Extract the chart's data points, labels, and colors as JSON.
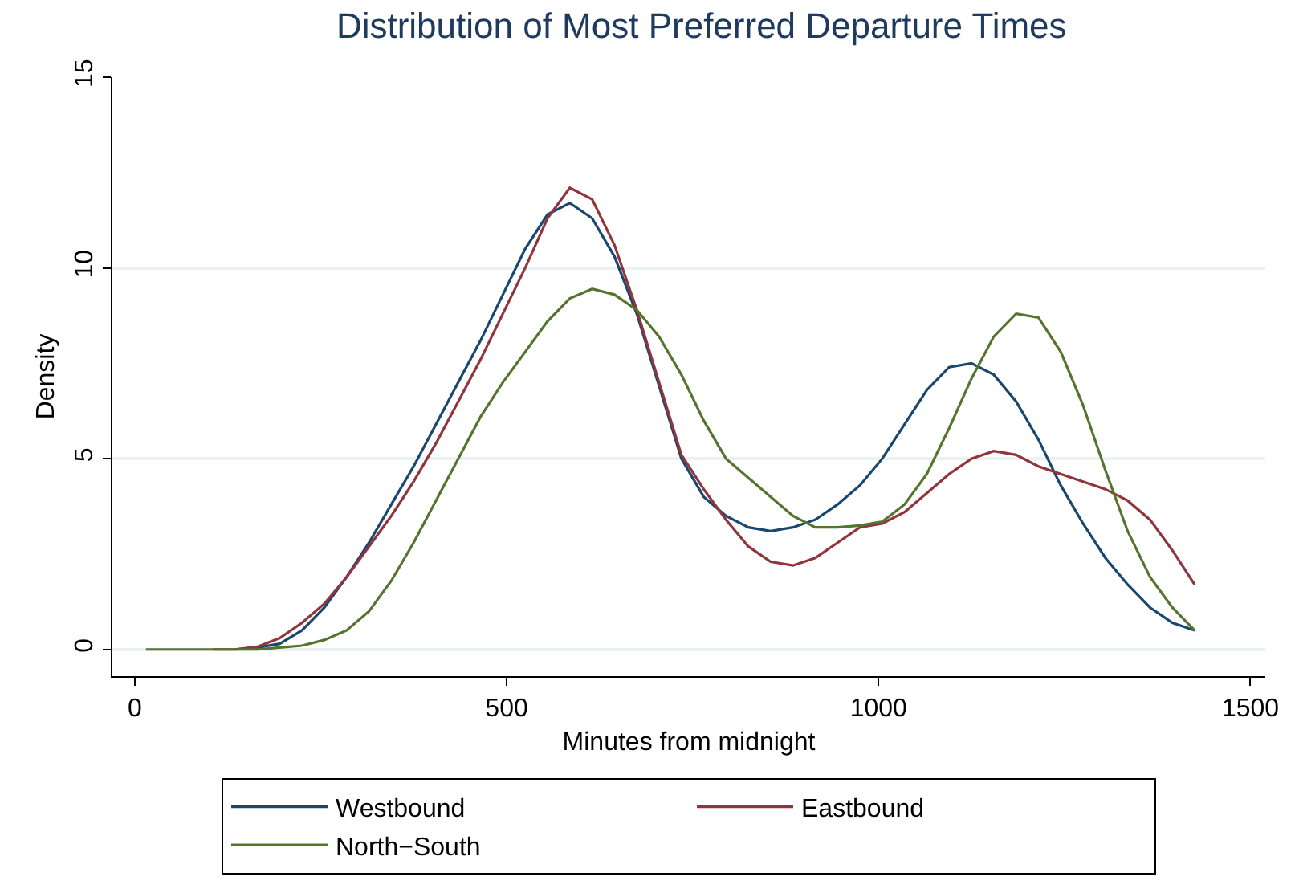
{
  "chart_data": {
    "type": "line",
    "title": "Distribution of Most Preferred Departure Times",
    "xlabel": "Minutes from midnight",
    "ylabel": "Density",
    "x": [
      15,
      45,
      75,
      105,
      135,
      165,
      195,
      225,
      255,
      285,
      315,
      345,
      375,
      405,
      435,
      465,
      495,
      525,
      555,
      585,
      615,
      645,
      675,
      705,
      735,
      765,
      795,
      825,
      855,
      885,
      915,
      945,
      975,
      1005,
      1035,
      1065,
      1095,
      1125,
      1155,
      1185,
      1215,
      1245,
      1275,
      1305,
      1335,
      1365,
      1395,
      1425
    ],
    "series": [
      {
        "name": "Westbound",
        "color": "#1a476f",
        "values": [
          null,
          null,
          null,
          null,
          0,
          0.05,
          0.15,
          0.5,
          1.1,
          1.9,
          2.8,
          3.8,
          4.8,
          5.9,
          7.0,
          8.1,
          9.3,
          10.5,
          11.4,
          11.7,
          11.3,
          10.3,
          8.8,
          6.9,
          5.0,
          4.0,
          3.5,
          3.2,
          3.1,
          3.2,
          3.4,
          3.8,
          4.3,
          5.0,
          5.9,
          6.8,
          7.4,
          7.5,
          7.2,
          6.5,
          5.5,
          4.3,
          3.3,
          2.4,
          1.7,
          1.1,
          0.7,
          0.5
        ]
      },
      {
        "name": "Eastbound",
        "color": "#90353b",
        "values": [
          null,
          null,
          null,
          0,
          0,
          0.07,
          0.3,
          0.7,
          1.2,
          1.9,
          2.7,
          3.5,
          4.4,
          5.4,
          6.5,
          7.6,
          8.8,
          10.0,
          11.3,
          12.1,
          11.8,
          10.6,
          8.9,
          7.0,
          5.1,
          4.2,
          3.4,
          2.7,
          2.3,
          2.2,
          2.4,
          2.8,
          3.2,
          3.3,
          3.6,
          4.1,
          4.6,
          5.0,
          5.2,
          5.1,
          4.8,
          4.6,
          4.4,
          4.2,
          3.9,
          3.4,
          2.6,
          1.7
        ]
      },
      {
        "name": "North−South",
        "color": "#55752f",
        "values": [
          0,
          0,
          0,
          0,
          0,
          0,
          0.05,
          0.1,
          0.25,
          0.5,
          1.0,
          1.8,
          2.8,
          3.9,
          5.0,
          6.1,
          7.0,
          7.8,
          8.6,
          9.2,
          9.45,
          9.3,
          8.9,
          8.2,
          7.2,
          6.0,
          5.0,
          4.5,
          4.0,
          3.5,
          3.2,
          3.2,
          3.25,
          3.35,
          3.8,
          4.6,
          5.8,
          7.1,
          8.2,
          8.8,
          8.7,
          7.8,
          6.4,
          4.7,
          3.1,
          1.9,
          1.1,
          0.5
        ]
      }
    ],
    "xlim": [
      -30,
      1520
    ],
    "ylim": [
      -0.7,
      15
    ],
    "xticks": [
      0,
      500,
      1000,
      1500
    ],
    "yticks": [
      0,
      5,
      10,
      15
    ],
    "grid": "y",
    "legend": "bottom",
    "marker": "none",
    "line_style": "solid"
  }
}
